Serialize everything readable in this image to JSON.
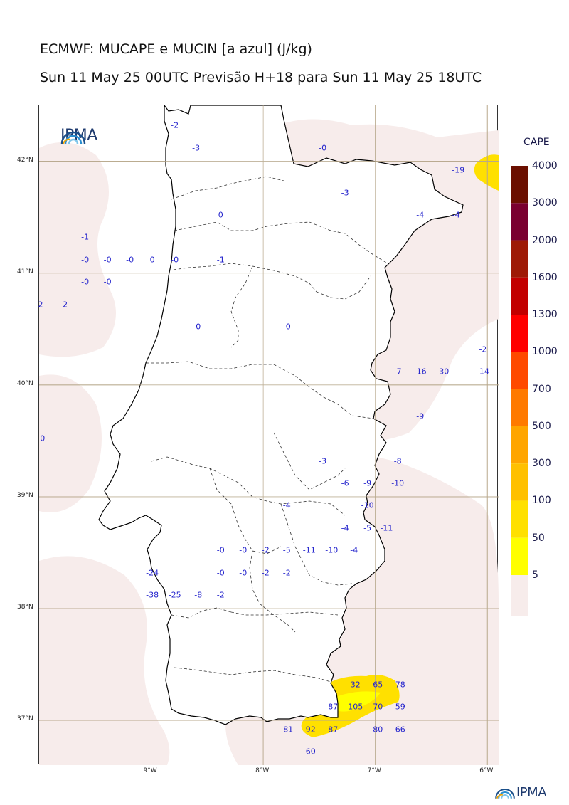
{
  "title": "ECMWF: MUCAPE e MUCIN [a azul] (J/kg)",
  "subtitle": "Sun 11 May 25 00UTC Previsão H+18 para Sun 11 May 25 18UTC",
  "logo_text": "IPMA",
  "colorbar": {
    "title": "CAPE",
    "levels": [
      "4000",
      "3000",
      "2000",
      "1600",
      "1300",
      "1000",
      "700",
      "500",
      "300",
      "100",
      "50",
      "5"
    ],
    "colors": [
      "#6b0f00",
      "#7a0030",
      "#9e1a06",
      "#c20000",
      "#ff0000",
      "#ff4a00",
      "#ff7a00",
      "#ffa500",
      "#ffc000",
      "#ffe000",
      "#ffff00",
      "#f7eceb"
    ]
  },
  "map": {
    "lon_range": [
      -10.0,
      -5.9
    ],
    "lat_range": [
      36.6,
      42.5
    ],
    "lat_ticks": [
      {
        "value": 42,
        "label": "42°N"
      },
      {
        "value": 41,
        "label": "41°N"
      },
      {
        "value": 40,
        "label": "40°N"
      },
      {
        "value": 39,
        "label": "39°N"
      },
      {
        "value": 38,
        "label": "38°N"
      },
      {
        "value": 37,
        "label": "37°N"
      }
    ],
    "lon_ticks": [
      {
        "value": -9,
        "label": "9°W"
      },
      {
        "value": -8,
        "label": "8°W"
      },
      {
        "value": -7,
        "label": "7°W"
      },
      {
        "value": -6,
        "label": "6°W"
      }
    ],
    "cin_values": [
      {
        "lon": -8.79,
        "lat": 42.32,
        "text": "-2"
      },
      {
        "lon": -8.6,
        "lat": 42.12,
        "text": "-3"
      },
      {
        "lon": -7.47,
        "lat": 42.12,
        "text": "-0"
      },
      {
        "lon": -7.27,
        "lat": 41.72,
        "text": "-3"
      },
      {
        "lon": -6.26,
        "lat": 41.92,
        "text": "-19"
      },
      {
        "lon": -8.38,
        "lat": 41.52,
        "text": "0"
      },
      {
        "lon": -6.6,
        "lat": 41.52,
        "text": "-4"
      },
      {
        "lon": -6.28,
        "lat": 41.52,
        "text": "-4"
      },
      {
        "lon": -9.59,
        "lat": 41.32,
        "text": "-1"
      },
      {
        "lon": -9.59,
        "lat": 41.12,
        "text": "-0"
      },
      {
        "lon": -9.39,
        "lat": 41.12,
        "text": "-0"
      },
      {
        "lon": -9.19,
        "lat": 41.12,
        "text": "-0"
      },
      {
        "lon": -8.99,
        "lat": 41.12,
        "text": "0"
      },
      {
        "lon": -8.79,
        "lat": 41.12,
        "text": "-0"
      },
      {
        "lon": -8.38,
        "lat": 41.12,
        "text": "-1"
      },
      {
        "lon": -9.59,
        "lat": 40.92,
        "text": "-0"
      },
      {
        "lon": -9.39,
        "lat": 40.92,
        "text": "-0"
      },
      {
        "lon": -10.0,
        "lat": 40.72,
        "text": "-2"
      },
      {
        "lon": -9.78,
        "lat": 40.72,
        "text": "-2"
      },
      {
        "lon": -8.58,
        "lat": 40.52,
        "text": "0"
      },
      {
        "lon": -7.79,
        "lat": 40.52,
        "text": "-0"
      },
      {
        "lon": -6.04,
        "lat": 40.32,
        "text": "-2"
      },
      {
        "lon": -6.8,
        "lat": 40.12,
        "text": "-7"
      },
      {
        "lon": -6.6,
        "lat": 40.12,
        "text": "-16"
      },
      {
        "lon": -6.4,
        "lat": 40.12,
        "text": "-30"
      },
      {
        "lon": -6.04,
        "lat": 40.12,
        "text": "-14"
      },
      {
        "lon": -6.6,
        "lat": 39.72,
        "text": "-9"
      },
      {
        "lon": -9.97,
        "lat": 39.52,
        "text": "0"
      },
      {
        "lon": -7.47,
        "lat": 39.32,
        "text": "-3"
      },
      {
        "lon": -6.8,
        "lat": 39.32,
        "text": "-8"
      },
      {
        "lon": -7.27,
        "lat": 39.12,
        "text": "-6"
      },
      {
        "lon": -7.07,
        "lat": 39.12,
        "text": "-9"
      },
      {
        "lon": -6.8,
        "lat": 39.12,
        "text": "-10"
      },
      {
        "lon": -7.79,
        "lat": 38.92,
        "text": "-4"
      },
      {
        "lon": -7.07,
        "lat": 38.92,
        "text": "-10"
      },
      {
        "lon": -7.27,
        "lat": 38.72,
        "text": "-4"
      },
      {
        "lon": -7.07,
        "lat": 38.72,
        "text": "-5"
      },
      {
        "lon": -6.9,
        "lat": 38.72,
        "text": "-11"
      },
      {
        "lon": -8.38,
        "lat": 38.52,
        "text": "-0"
      },
      {
        "lon": -8.18,
        "lat": 38.52,
        "text": "-0"
      },
      {
        "lon": -7.98,
        "lat": 38.52,
        "text": "-2"
      },
      {
        "lon": -7.79,
        "lat": 38.52,
        "text": "-5"
      },
      {
        "lon": -7.59,
        "lat": 38.52,
        "text": "-11"
      },
      {
        "lon": -7.39,
        "lat": 38.52,
        "text": "-10"
      },
      {
        "lon": -7.19,
        "lat": 38.52,
        "text": "-4"
      },
      {
        "lon": -8.99,
        "lat": 38.32,
        "text": "-24"
      },
      {
        "lon": -8.38,
        "lat": 38.32,
        "text": "-0"
      },
      {
        "lon": -8.18,
        "lat": 38.32,
        "text": "-0"
      },
      {
        "lon": -7.98,
        "lat": 38.32,
        "text": "-2"
      },
      {
        "lon": -7.79,
        "lat": 38.32,
        "text": "-2"
      },
      {
        "lon": -8.99,
        "lat": 38.12,
        "text": "-38"
      },
      {
        "lon": -8.79,
        "lat": 38.12,
        "text": "-25"
      },
      {
        "lon": -8.58,
        "lat": 38.12,
        "text": "-8"
      },
      {
        "lon": -8.38,
        "lat": 38.12,
        "text": "-2"
      },
      {
        "lon": -7.19,
        "lat": 37.32,
        "text": "-32"
      },
      {
        "lon": -6.99,
        "lat": 37.32,
        "text": "-65"
      },
      {
        "lon": -6.79,
        "lat": 37.32,
        "text": "-78"
      },
      {
        "lon": -7.39,
        "lat": 37.12,
        "text": "-87"
      },
      {
        "lon": -7.19,
        "lat": 37.12,
        "text": "-105"
      },
      {
        "lon": -6.99,
        "lat": 37.12,
        "text": "-70"
      },
      {
        "lon": -6.79,
        "lat": 37.12,
        "text": "-59"
      },
      {
        "lon": -7.79,
        "lat": 36.92,
        "text": "-81"
      },
      {
        "lon": -7.59,
        "lat": 36.92,
        "text": "-92"
      },
      {
        "lon": -7.39,
        "lat": 36.92,
        "text": "-87"
      },
      {
        "lon": -6.99,
        "lat": 36.92,
        "text": "-80"
      },
      {
        "lon": -6.79,
        "lat": 36.92,
        "text": "-66"
      },
      {
        "lon": -7.59,
        "lat": 36.72,
        "text": "-60"
      }
    ]
  }
}
